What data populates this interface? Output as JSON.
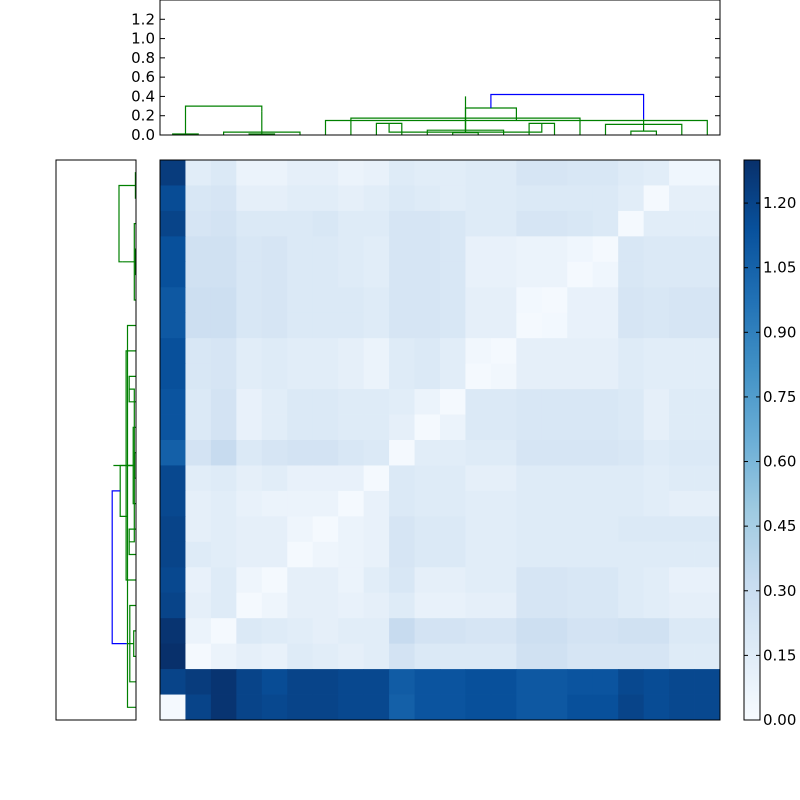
{
  "chart_data": [
    {
      "type": "dendrogram",
      "panel": "top",
      "yticks": [
        0.0,
        0.2,
        0.4,
        0.6,
        0.8,
        1.0,
        1.2
      ],
      "ytick_labels": [
        "0.0",
        "0.2",
        "0.4",
        "0.6",
        "0.8",
        "1.0",
        "1.2"
      ],
      "ylim": [
        0,
        1.4
      ],
      "leaf_count": 22,
      "colors": {
        "root": "#0000ff",
        "cluster": "#008000"
      },
      "links": [
        {
          "left": 3,
          "right": 4,
          "height": 0.01,
          "color": "#008000"
        },
        {
          "left": 2,
          "right": 5,
          "height": 0.03,
          "color": "#008000"
        },
        {
          "left": 11,
          "right": 12,
          "height": 0.025,
          "color": "#008000"
        },
        {
          "left": 10,
          "right": 13,
          "height": 0.05,
          "color": "#008000"
        },
        {
          "left": 8,
          "right": 9,
          "height": 0.12,
          "color": "#008000"
        },
        {
          "left": 14,
          "right": 15,
          "height": 0.12,
          "color": "#008000"
        },
        {
          "left": 7,
          "right": 16,
          "height": 0.175,
          "color": "#008000"
        },
        {
          "left": 18,
          "right": 19,
          "height": 0.04,
          "color": "#008000"
        },
        {
          "left": 17,
          "right": 20,
          "height": 0.11,
          "color": "#008000"
        },
        {
          "left": 6,
          "right": 21,
          "height": 0.15,
          "color": "#008000"
        },
        {
          "left": 22,
          "right": 23,
          "height": 0.24,
          "color": "#008000"
        },
        {
          "left": 0,
          "right": 1,
          "height": 0.01,
          "color": "#008000"
        },
        {
          "left": 26,
          "right": 27,
          "height": 0.03,
          "color": "#008000"
        },
        {
          "left": 25,
          "right": 28,
          "height": 0.12,
          "color": "#008000"
        },
        {
          "left": 29,
          "right": 30,
          "height": 0.165,
          "color": "#008000"
        },
        {
          "left": 24,
          "right": 31,
          "height": 0.28,
          "color": "#008000"
        },
        {
          "left": 32,
          "right": 33,
          "height": 0.3,
          "color": "#008000"
        },
        {
          "left": 34,
          "right": 35,
          "height": 0.4,
          "color": "#008000"
        },
        {
          "left": 36,
          "right": 37,
          "height": 0.42,
          "color": "#0000ff"
        }
      ]
    },
    {
      "type": "dendrogram",
      "panel": "left",
      "leaf_count": 22,
      "colors": {
        "root": "#0000ff",
        "cluster": "#008000"
      }
    },
    {
      "type": "heatmap",
      "rows": 22,
      "cols": 22,
      "colormap": "Blues",
      "vmin": 0,
      "vmax": 1.3,
      "colorbar_ticks": [
        0.0,
        0.15,
        0.3,
        0.45,
        0.6,
        0.75,
        0.9,
        1.05,
        1.2
      ],
      "colorbar_tick_labels": [
        "0.00",
        "0.15",
        "0.30",
        "0.45",
        "0.60",
        "0.75",
        "0.90",
        "1.05",
        "1.20"
      ],
      "values": [
        [
          1.24,
          0.14,
          0.18,
          0.08,
          0.08,
          0.12,
          0.12,
          0.08,
          0.1,
          0.16,
          0.14,
          0.14,
          0.16,
          0.16,
          0.22,
          0.22,
          0.2,
          0.2,
          0.16,
          0.14,
          0.05,
          0.05
        ],
        [
          1.16,
          0.2,
          0.22,
          0.12,
          0.12,
          0.14,
          0.14,
          0.12,
          0.14,
          0.18,
          0.16,
          0.14,
          0.16,
          0.16,
          0.18,
          0.18,
          0.18,
          0.18,
          0.14,
          0.02,
          0.12,
          0.12
        ],
        [
          1.2,
          0.22,
          0.24,
          0.18,
          0.18,
          0.18,
          0.2,
          0.16,
          0.16,
          0.22,
          0.22,
          0.2,
          0.16,
          0.16,
          0.22,
          0.22,
          0.2,
          0.18,
          0.02,
          0.14,
          0.14,
          0.14
        ],
        [
          1.14,
          0.26,
          0.26,
          0.2,
          0.22,
          0.18,
          0.18,
          0.16,
          0.14,
          0.22,
          0.22,
          0.2,
          0.1,
          0.1,
          0.08,
          0.08,
          0.05,
          0.02,
          0.2,
          0.18,
          0.18,
          0.18
        ],
        [
          1.14,
          0.26,
          0.26,
          0.2,
          0.22,
          0.18,
          0.18,
          0.16,
          0.14,
          0.22,
          0.22,
          0.2,
          0.1,
          0.1,
          0.08,
          0.08,
          0.02,
          0.05,
          0.2,
          0.18,
          0.18,
          0.18
        ],
        [
          1.1,
          0.28,
          0.28,
          0.2,
          0.22,
          0.18,
          0.18,
          0.18,
          0.16,
          0.22,
          0.22,
          0.2,
          0.12,
          0.12,
          0.03,
          0.02,
          0.1,
          0.1,
          0.22,
          0.2,
          0.22,
          0.22
        ],
        [
          1.1,
          0.28,
          0.28,
          0.2,
          0.22,
          0.18,
          0.18,
          0.18,
          0.16,
          0.22,
          0.22,
          0.2,
          0.12,
          0.12,
          0.02,
          0.03,
          0.1,
          0.1,
          0.22,
          0.2,
          0.22,
          0.22
        ],
        [
          1.14,
          0.2,
          0.22,
          0.14,
          0.16,
          0.14,
          0.14,
          0.12,
          0.08,
          0.16,
          0.18,
          0.14,
          0.04,
          0.02,
          0.12,
          0.12,
          0.12,
          0.12,
          0.16,
          0.14,
          0.14,
          0.14
        ],
        [
          1.14,
          0.2,
          0.22,
          0.14,
          0.16,
          0.14,
          0.14,
          0.12,
          0.08,
          0.16,
          0.18,
          0.14,
          0.02,
          0.04,
          0.12,
          0.12,
          0.12,
          0.12,
          0.16,
          0.14,
          0.14,
          0.14
        ],
        [
          1.12,
          0.18,
          0.24,
          0.1,
          0.14,
          0.18,
          0.18,
          0.16,
          0.16,
          0.14,
          0.08,
          0.02,
          0.18,
          0.18,
          0.2,
          0.2,
          0.2,
          0.2,
          0.18,
          0.12,
          0.16,
          0.16
        ],
        [
          1.12,
          0.18,
          0.24,
          0.1,
          0.14,
          0.18,
          0.18,
          0.16,
          0.16,
          0.12,
          0.02,
          0.08,
          0.18,
          0.18,
          0.2,
          0.2,
          0.2,
          0.2,
          0.18,
          0.12,
          0.16,
          0.16
        ],
        [
          1.06,
          0.24,
          0.32,
          0.18,
          0.22,
          0.24,
          0.24,
          0.2,
          0.18,
          0.02,
          0.14,
          0.14,
          0.16,
          0.16,
          0.22,
          0.22,
          0.22,
          0.22,
          0.2,
          0.16,
          0.18,
          0.18
        ],
        [
          1.18,
          0.14,
          0.16,
          0.12,
          0.14,
          0.1,
          0.1,
          0.1,
          0.02,
          0.18,
          0.16,
          0.16,
          0.12,
          0.12,
          0.16,
          0.16,
          0.16,
          0.16,
          0.16,
          0.14,
          0.16,
          0.16
        ],
        [
          1.18,
          0.12,
          0.14,
          0.1,
          0.08,
          0.08,
          0.08,
          0.02,
          0.1,
          0.18,
          0.16,
          0.16,
          0.14,
          0.14,
          0.16,
          0.16,
          0.16,
          0.16,
          0.16,
          0.14,
          0.12,
          0.12
        ],
        [
          1.2,
          0.12,
          0.14,
          0.12,
          0.12,
          0.06,
          0.02,
          0.08,
          0.1,
          0.22,
          0.18,
          0.18,
          0.14,
          0.14,
          0.16,
          0.16,
          0.16,
          0.16,
          0.18,
          0.18,
          0.18,
          0.18
        ],
        [
          1.2,
          0.16,
          0.14,
          0.12,
          0.12,
          0.02,
          0.06,
          0.08,
          0.1,
          0.22,
          0.18,
          0.18,
          0.14,
          0.14,
          0.16,
          0.16,
          0.16,
          0.16,
          0.16,
          0.16,
          0.16,
          0.16
        ],
        [
          1.18,
          0.1,
          0.16,
          0.06,
          0.02,
          0.12,
          0.12,
          0.08,
          0.14,
          0.2,
          0.12,
          0.12,
          0.14,
          0.14,
          0.22,
          0.22,
          0.2,
          0.2,
          0.16,
          0.14,
          0.1,
          0.1
        ],
        [
          1.2,
          0.12,
          0.16,
          0.02,
          0.06,
          0.12,
          0.12,
          0.1,
          0.12,
          0.16,
          0.1,
          0.1,
          0.12,
          0.12,
          0.22,
          0.22,
          0.2,
          0.2,
          0.16,
          0.14,
          0.12,
          0.12
        ],
        [
          1.28,
          0.08,
          0.02,
          0.18,
          0.16,
          0.14,
          0.12,
          0.14,
          0.14,
          0.32,
          0.24,
          0.24,
          0.22,
          0.22,
          0.28,
          0.28,
          0.24,
          0.24,
          0.26,
          0.26,
          0.18,
          0.18
        ],
        [
          1.3,
          0.02,
          0.08,
          0.12,
          0.1,
          0.16,
          0.14,
          0.12,
          0.14,
          0.24,
          0.18,
          0.18,
          0.18,
          0.18,
          0.26,
          0.26,
          0.22,
          0.22,
          0.22,
          0.22,
          0.16,
          0.16
        ],
        [
          1.2,
          1.24,
          1.28,
          1.2,
          1.16,
          1.2,
          1.2,
          1.18,
          1.18,
          1.08,
          1.12,
          1.12,
          1.14,
          1.14,
          1.1,
          1.1,
          1.12,
          1.12,
          1.18,
          1.16,
          1.18,
          1.18
        ],
        [
          0.02,
          1.2,
          1.28,
          1.2,
          1.18,
          1.2,
          1.2,
          1.18,
          1.18,
          1.06,
          1.12,
          1.12,
          1.14,
          1.14,
          1.1,
          1.1,
          1.14,
          1.14,
          1.2,
          1.16,
          1.18,
          1.18
        ]
      ]
    }
  ]
}
